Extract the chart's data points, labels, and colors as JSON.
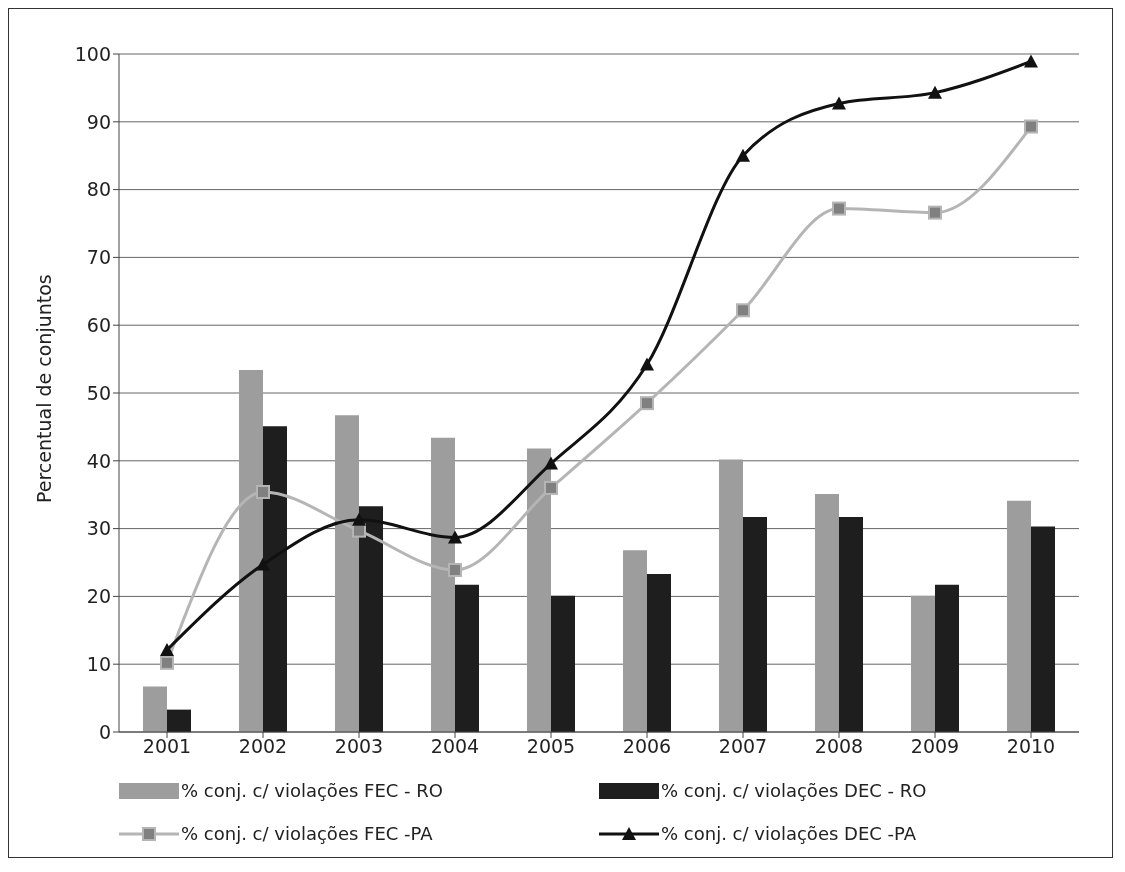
{
  "chart_data": {
    "type": "bar",
    "ylabel": "Percentual de conjuntos",
    "categories": [
      "2001",
      "2002",
      "2003",
      "2004",
      "2005",
      "2006",
      "2007",
      "2008",
      "2009",
      "2010"
    ],
    "series": [
      {
        "name": "% conj. c/ violações FEC - RO",
        "color": "#9d9d9d",
        "values": [
          6.7,
          53.4,
          46.7,
          43.4,
          41.8,
          26.8,
          40.2,
          35.1,
          20.1,
          34.1
        ]
      },
      {
        "name": "% conj. c/ violações DEC - RO",
        "color": "#1e1e1e",
        "values": [
          3.3,
          45.1,
          33.3,
          21.7,
          20.1,
          23.3,
          31.7,
          31.7,
          21.7,
          30.3
        ]
      },
      {
        "name": "% conj. c/ violações FEC -PA",
        "type": "line",
        "marker": "square",
        "color": "#b5b5b5",
        "values": [
          10.2,
          35.4,
          29.7,
          23.9,
          36.0,
          48.5,
          62.2,
          77.2,
          76.6,
          89.3
        ]
      },
      {
        "name": "% conj. c/ violações DEC -PA",
        "type": "line",
        "marker": "triangle",
        "color": "#111111",
        "values": [
          12.1,
          24.7,
          31.3,
          28.7,
          39.6,
          54.2,
          85.0,
          92.7,
          94.3,
          98.9
        ]
      }
    ],
    "ylim": [
      0,
      100
    ],
    "yticks": [
      0,
      10,
      20,
      30,
      40,
      50,
      60,
      70,
      80,
      90,
      100
    ],
    "grid": "y",
    "legend": "bottom"
  }
}
